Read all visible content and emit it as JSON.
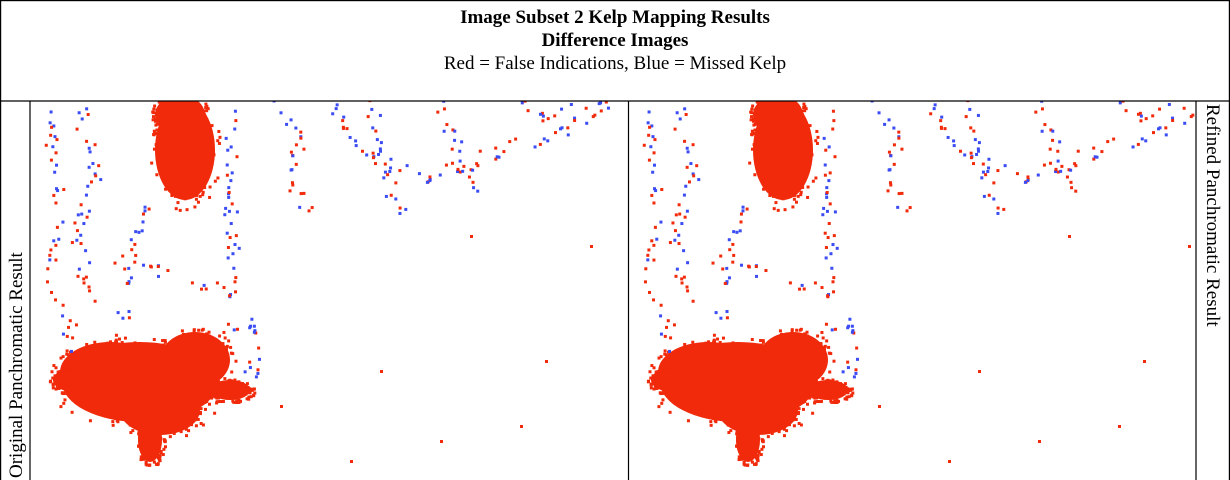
{
  "header": {
    "title": "Image Subset 2 Kelp Mapping Results",
    "subtitle": "Difference Images",
    "legend": "Red = False Indications, Blue = Missed Kelp"
  },
  "panels": [
    {
      "label": "Original Panchromatic Result"
    },
    {
      "label": "Refined Panchromatic Result"
    }
  ]
}
